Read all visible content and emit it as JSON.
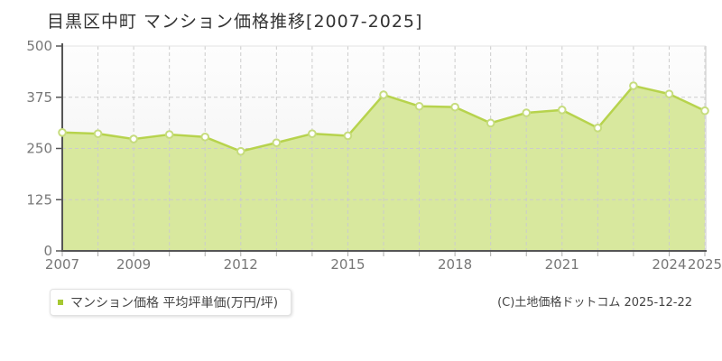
{
  "chart_data": {
    "type": "area",
    "title": "目黒区中町 マンション価格推移[2007-2025]",
    "x": [
      2007,
      2008,
      2009,
      2010,
      2011,
      2012,
      2013,
      2014,
      2015,
      2016,
      2017,
      2018,
      2019,
      2020,
      2021,
      2022,
      2023,
      2024,
      2025
    ],
    "series": [
      {
        "name": "マンション価格",
        "values": [
          289,
          286,
          273,
          284,
          278,
          243,
          264,
          286,
          281,
          381,
          353,
          351,
          312,
          337,
          344,
          300,
          403,
          383,
          342
        ]
      }
    ],
    "x_tick_labels": [
      "2007",
      "2009",
      "2012",
      "2015",
      "2018",
      "2021",
      "2024",
      "2025"
    ],
    "y_ticks": [
      0,
      125,
      250,
      375,
      500
    ],
    "ylim": [
      0,
      500
    ],
    "xlabel": "",
    "ylabel": "単価(万円/坪)",
    "grid": true,
    "legend_position": "bottom-left",
    "colors": {
      "area_fill": "#d8e89e",
      "line": "#b7d34d",
      "marker_fill": "#ffffff",
      "marker_stroke": "#c6dc7d",
      "axis": "#555555",
      "gridline": "#cccccc",
      "top_border": "#e3e3e3",
      "right_border": "#d8d8d8",
      "x_tick": "#aaaaaa",
      "tick_label": "#777777",
      "plot_bg_top": "#fdfdfd",
      "plot_bg_bottom": "#f1f1f1"
    }
  },
  "legend": {
    "label": "マンション価格 平均坪単価(万円/坪)",
    "marker_color": "#a6c832"
  },
  "footer": {
    "copyright": "(C)土地価格ドットコム 2025-12-22"
  }
}
